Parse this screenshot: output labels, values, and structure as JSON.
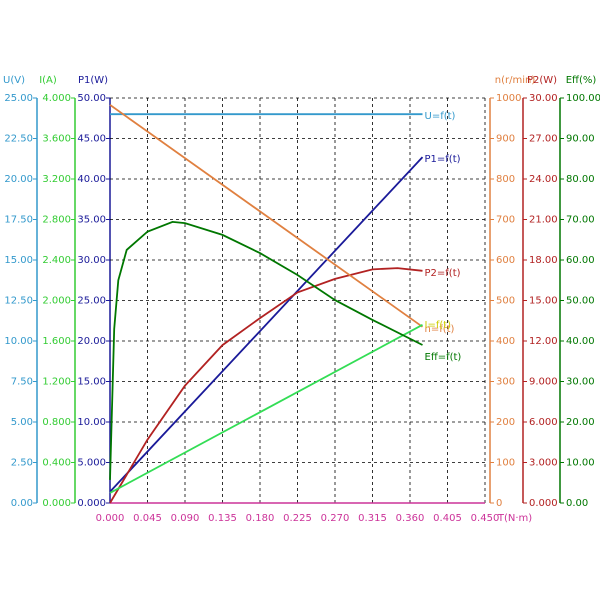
{
  "chart_data": {
    "type": "line",
    "xlabel": "T(N·m)",
    "xcolor": "#cc3399",
    "xlim": [
      0,
      0.45
    ],
    "xticks": [
      {
        "value": 0,
        "label": "0.000"
      },
      {
        "value": 0.045,
        "label": "0.045"
      },
      {
        "value": 0.09,
        "label": "0.090"
      },
      {
        "value": 0.135,
        "label": "0.135"
      },
      {
        "value": 0.18,
        "label": "0.180"
      },
      {
        "value": 0.225,
        "label": "0.225"
      },
      {
        "value": 0.27,
        "label": "0.270"
      },
      {
        "value": 0.315,
        "label": "0.315"
      },
      {
        "value": 0.36,
        "label": "0.360"
      },
      {
        "value": 0.405,
        "label": "0.405"
      },
      {
        "value": 0.45,
        "label": "0.450"
      }
    ],
    "grid": true,
    "axes": [
      {
        "label": "U(V)",
        "color": "#3399cc",
        "lim": [
          0,
          25
        ],
        "ticks": [
          {
            "value": 0,
            "label": "0.00"
          },
          {
            "value": 2.5,
            "label": "2.50"
          },
          {
            "value": 5,
            "label": "5.00"
          },
          {
            "value": 7.5,
            "label": "7.50"
          },
          {
            "value": 10,
            "label": "10.00"
          },
          {
            "value": 12.5,
            "label": "12.50"
          },
          {
            "value": 15,
            "label": "15.00"
          },
          {
            "value": 17.5,
            "label": "17.50"
          },
          {
            "value": 20,
            "label": "20.00"
          },
          {
            "value": 22.5,
            "label": "22.50"
          },
          {
            "value": 25,
            "label": "25.00"
          }
        ]
      },
      {
        "label": "I(A)",
        "color": "#33cc33",
        "lim": [
          0,
          4
        ],
        "ticks": [
          {
            "value": 0,
            "label": "0.000"
          },
          {
            "value": 0.4,
            "label": "0.400"
          },
          {
            "value": 0.8,
            "label": "0.800"
          },
          {
            "value": 1.2,
            "label": "1.200"
          },
          {
            "value": 1.6,
            "label": "1.600"
          },
          {
            "value": 2,
            "label": "2.000"
          },
          {
            "value": 2.4,
            "label": "2.400"
          },
          {
            "value": 2.8,
            "label": "2.800"
          },
          {
            "value": 3.2,
            "label": "3.200"
          },
          {
            "value": 3.6,
            "label": "3.600"
          },
          {
            "value": 4,
            "label": "4.000"
          }
        ]
      },
      {
        "label": "P1(W)",
        "color": "#1a1a99",
        "lim": [
          0,
          50
        ],
        "ticks": [
          {
            "value": 0,
            "label": "0.000"
          },
          {
            "value": 5,
            "label": "5.000"
          },
          {
            "value": 10,
            "label": "10.00"
          },
          {
            "value": 15,
            "label": "15.00"
          },
          {
            "value": 20,
            "label": "20.00"
          },
          {
            "value": 25,
            "label": "25.00"
          },
          {
            "value": 30,
            "label": "30.00"
          },
          {
            "value": 35,
            "label": "35.00"
          },
          {
            "value": 40,
            "label": "40.00"
          },
          {
            "value": 45,
            "label": "45.00"
          },
          {
            "value": 50,
            "label": "50.00"
          }
        ]
      },
      {
        "label": "n(r/min)",
        "color": "#e08040",
        "lim": [
          0,
          1000
        ],
        "ticks": [
          0,
          100,
          200,
          300,
          400,
          500,
          600,
          700,
          800,
          900,
          1000
        ]
      },
      {
        "label": "P2(W)",
        "color": "#b22222",
        "lim": [
          0,
          30
        ],
        "ticks": [
          {
            "value": 0,
            "label": "0.000"
          },
          {
            "value": 3,
            "label": "3.000"
          },
          {
            "value": 6,
            "label": "6.000"
          },
          {
            "value": 9,
            "label": "9.000"
          },
          {
            "value": 12,
            "label": "12.00"
          },
          {
            "value": 15,
            "label": "15.00"
          },
          {
            "value": 18,
            "label": "18.00"
          },
          {
            "value": 21,
            "label": "21.00"
          },
          {
            "value": 24,
            "label": "24.00"
          },
          {
            "value": 27,
            "label": "27.00"
          },
          {
            "value": 30,
            "label": "30.00"
          }
        ]
      },
      {
        "label": "Eff(%)",
        "color": "#007700",
        "lim": [
          0,
          100
        ],
        "ticks": [
          {
            "value": 0,
            "label": "0.00"
          },
          {
            "value": 10,
            "label": "10.00"
          },
          {
            "value": 20,
            "label": "20.00"
          },
          {
            "value": 30,
            "label": "30.00"
          },
          {
            "value": 40,
            "label": "40.00"
          },
          {
            "value": 50,
            "label": "50.00"
          },
          {
            "value": 60,
            "label": "60.00"
          },
          {
            "value": 70,
            "label": "70.00"
          },
          {
            "value": 80,
            "label": "80.00"
          },
          {
            "value": 90,
            "label": "90.00"
          },
          {
            "value": 100,
            "label": "100.00"
          }
        ]
      }
    ],
    "series": [
      {
        "name": "U=f(t)",
        "color": "#3399cc",
        "axis": 0,
        "x": [
          0,
          0.375
        ],
        "values": [
          24.0,
          24.0
        ]
      },
      {
        "name": "P1=f(t)",
        "color": "#1a1a99",
        "axis": 2,
        "x": [
          0,
          0.375
        ],
        "values": [
          1.4,
          42.7
        ]
      },
      {
        "name": "P2=f(t)",
        "color": "#b22222",
        "axis": 4,
        "x": [
          0,
          0.045,
          0.09,
          0.135,
          0.18,
          0.225,
          0.27,
          0.315,
          0.345,
          0.375
        ],
        "values": [
          0,
          4.7,
          8.7,
          11.7,
          13.7,
          15.6,
          16.6,
          17.3,
          17.4,
          17.2
        ]
      },
      {
        "name": "n=f(t)",
        "color": "#e08040",
        "axis": 3,
        "x": [
          0,
          0.375
        ],
        "values": [
          983,
          435
        ]
      },
      {
        "name": "I=f(t)",
        "color": "#33dd55",
        "axis": 1,
        "x": [
          0,
          0.375
        ],
        "values": [
          0.1,
          1.76
        ]
      },
      {
        "name": "Eff=f(t)",
        "color": "#007700",
        "axis": 5,
        "x": [
          0,
          0.005,
          0.01,
          0.02,
          0.045,
          0.075,
          0.09,
          0.135,
          0.18,
          0.225,
          0.27,
          0.315,
          0.375
        ],
        "values": [
          5.7,
          43,
          55,
          62.5,
          67,
          69.4,
          69.1,
          66.2,
          61.7,
          56.3,
          50.1,
          45.2,
          39.0
        ]
      }
    ]
  }
}
